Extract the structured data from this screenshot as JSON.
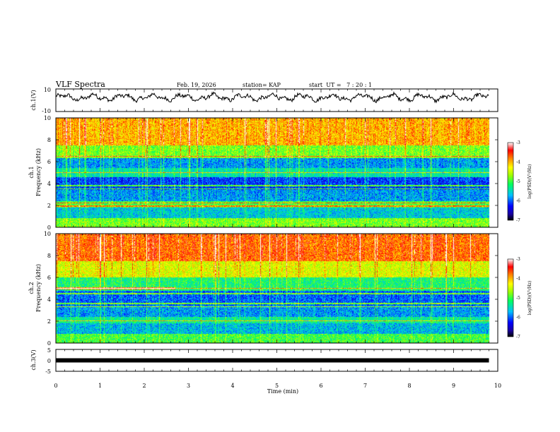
{
  "header": {
    "title": "VLF Spectra",
    "date": "Feb. 19, 2026",
    "station": "station= KAP",
    "start": "start  UT =   7 : 20 : 1"
  },
  "chart_data": [
    {
      "type": "line",
      "name": "ch1-waveform",
      "ylabel": "ch.1(V)",
      "ylim": [
        -10,
        10
      ],
      "yticks": [
        "10",
        "-10"
      ],
      "x_range_min": [
        0,
        9.8
      ],
      "trace_level_v": 2.5,
      "trace_amplitude_v": 4
    },
    {
      "type": "heatmap",
      "name": "ch1-spectrogram",
      "channel_label": "ch.1",
      "ylabel": "Frequency (kHz)",
      "ylim": [
        0,
        10
      ],
      "yticks": [
        "0",
        "2",
        "4",
        "6",
        "8",
        "10"
      ],
      "x_range_min": [
        0,
        9.8
      ],
      "colorbar": {
        "label": "log(PSD)(V²/Hz)",
        "range": [
          -7,
          -3
        ],
        "ticks": [
          "-3",
          "-4",
          "-5",
          "-6",
          "-7"
        ]
      },
      "bands_khz": [
        {
          "lo": 0,
          "hi": 0.8,
          "level": 0.55
        },
        {
          "lo": 0.8,
          "hi": 1.8,
          "level": 0.35
        },
        {
          "lo": 1.8,
          "hi": 2.4,
          "level": 0.5
        },
        {
          "lo": 2.4,
          "hi": 3.4,
          "level": 0.3
        },
        {
          "lo": 3.4,
          "hi": 4.6,
          "level": 0.22
        },
        {
          "lo": 4.6,
          "hi": 5.4,
          "level": 0.4
        },
        {
          "lo": 5.4,
          "hi": 6.3,
          "level": 0.3
        },
        {
          "lo": 6.3,
          "hi": 7.5,
          "level": 0.55
        },
        {
          "lo": 7.5,
          "hi": 10,
          "level": 0.75
        }
      ],
      "lines_khz": [
        1.9,
        2.2,
        3.5,
        3.8,
        5.0,
        6.5
      ]
    },
    {
      "type": "heatmap",
      "name": "ch2-spectrogram",
      "channel_label": "ch.2",
      "ylabel": "Frequency (kHz)",
      "ylim": [
        0,
        10
      ],
      "yticks": [
        "0",
        "2",
        "4",
        "6",
        "8",
        "10"
      ],
      "x_range_min": [
        0,
        9.8
      ],
      "colorbar": {
        "label": "log(PSD)(V²/Hz)",
        "range": [
          -7,
          -3
        ],
        "ticks": [
          "-3",
          "-4",
          "-5",
          "-6",
          "-7"
        ]
      },
      "bands_khz": [
        {
          "lo": 0,
          "hi": 0.8,
          "level": 0.5
        },
        {
          "lo": 0.8,
          "hi": 1.8,
          "level": 0.33
        },
        {
          "lo": 1.8,
          "hi": 2.4,
          "level": 0.42
        },
        {
          "lo": 2.4,
          "hi": 3.4,
          "level": 0.3
        },
        {
          "lo": 3.4,
          "hi": 4.8,
          "level": 0.25
        },
        {
          "lo": 4.8,
          "hi": 6.0,
          "level": 0.45
        },
        {
          "lo": 6.0,
          "hi": 7.5,
          "level": 0.65
        },
        {
          "lo": 7.5,
          "hi": 10,
          "level": 0.82
        }
      ],
      "lines_khz": [
        2.0,
        3.3,
        3.6,
        4.5,
        5.0
      ]
    },
    {
      "type": "line",
      "name": "ch3-waveform",
      "ylabel": "ch.3(V)",
      "ylim": [
        -5,
        5
      ],
      "yticks": [
        "5",
        "0",
        "-5"
      ],
      "x_range_min": [
        0,
        9.8
      ],
      "trace_level_v": 0
    }
  ],
  "xaxis": {
    "label": "Time (min)",
    "range": [
      0,
      10
    ],
    "ticks": [
      "0",
      "1",
      "2",
      "3",
      "4",
      "5",
      "6",
      "7",
      "8",
      "9",
      "10"
    ]
  },
  "colors": {
    "trace": "#000000",
    "axis": "#000000"
  }
}
